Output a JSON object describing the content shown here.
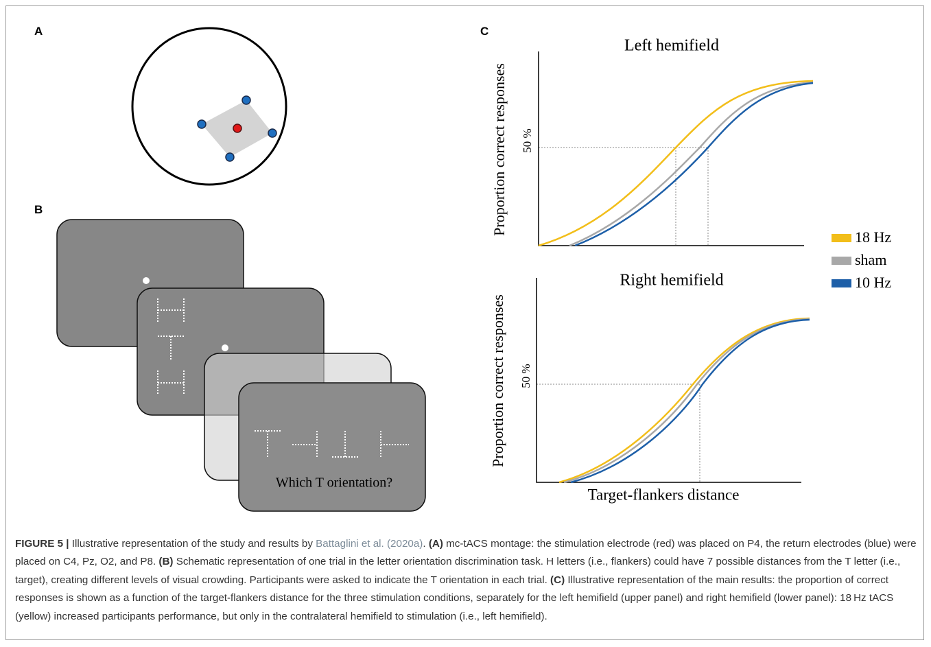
{
  "panel_a": {
    "label": "A"
  },
  "panel_b": {
    "label": "B",
    "prompt": "Which T orientation?"
  },
  "panel_c": {
    "label": "C",
    "top": {
      "title": "Left hemifield",
      "y_label": "Proportion correct responses",
      "level_label": "50 %"
    },
    "bottom": {
      "title": "Right hemifield",
      "y_label": "Proportion correct responses",
      "level_label": "50 %",
      "x_label": "Target-flankers distance"
    },
    "legend": [
      "18 Hz",
      "sham",
      "10 Hz"
    ]
  },
  "caption": {
    "figure": "FIGURE 5 |",
    "intro": " Illustrative representation of the study and results by ",
    "citation": "Battaglini et al. (2020a)",
    "intro_end": ". ",
    "a_tag": "(A)",
    "a_text": " mc-tACS montage: the stimulation electrode (red) was placed on P4, the return electrodes (blue) were placed on C4, Pz, O2, and P8. ",
    "b_tag": "(B)",
    "b_text": " Schematic representation of one trial in the letter orientation discrimination task. H letters (i.e., flankers) could have 7 possible distances from the T letter (i.e., target), creating different levels of visual crowding. Participants were asked to indicate the T orientation in each trial. ",
    "c_tag": "(C)",
    "c_text": " Illustrative representation of the main results: the proportion of correct responses is shown as a function of the target-flankers distance for the three stimulation conditions, separately for the left hemifield (upper panel) and right hemifield (lower panel): 18 Hz tACS (yellow) increased participants performance, but only in the contralateral hemifield to stimulation (i.e., left hemifield)."
  }
}
